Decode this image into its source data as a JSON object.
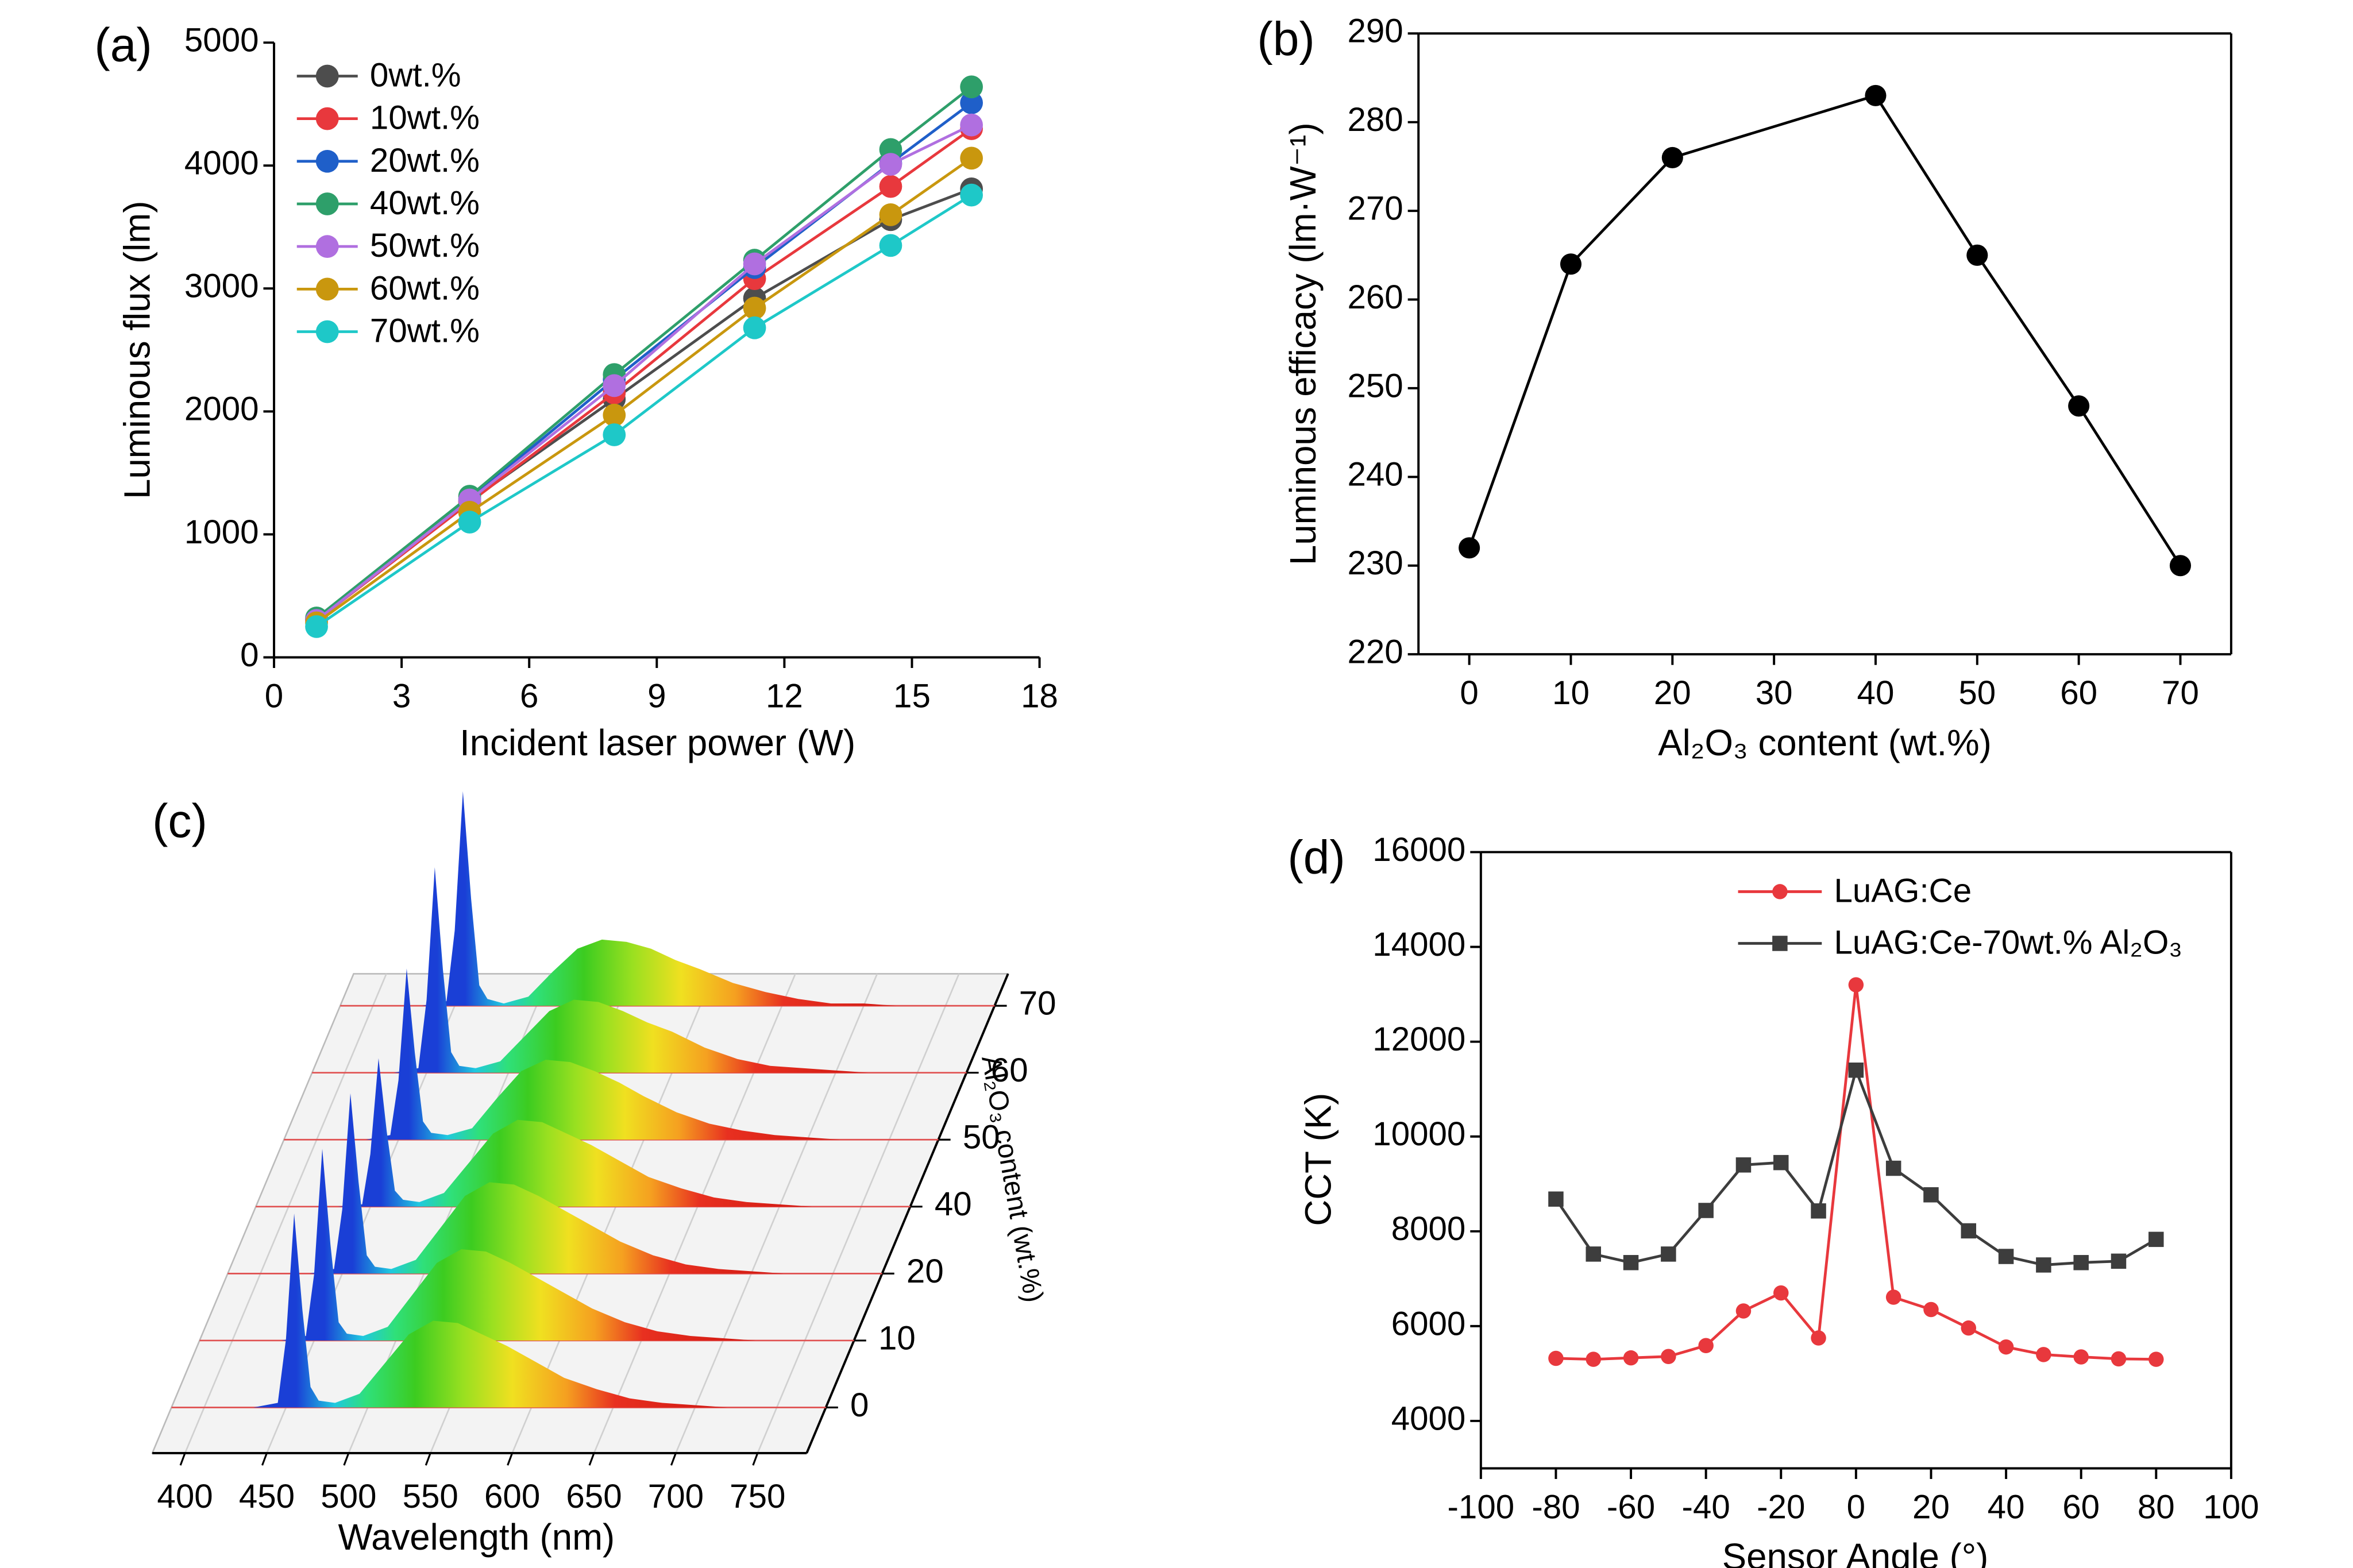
{
  "chart_data": [
    {
      "type": "line",
      "label": "(a)",
      "xlabel": "Incident laser power (W)",
      "ylabel": "Luminous flux (lm)",
      "x": [
        1,
        4.6,
        8,
        11.3,
        14.5,
        16.4
      ],
      "series": [
        {
          "name": "0wt.%",
          "color": "#4d4d4d",
          "values": [
            310,
            1270,
            2100,
            2920,
            3560,
            3810
          ]
        },
        {
          "name": "10wt.%",
          "color": "#e8383d",
          "values": [
            300,
            1260,
            2150,
            3080,
            3830,
            4300
          ]
        },
        {
          "name": "20wt.%",
          "color": "#1f5fc9",
          "values": [
            310,
            1290,
            2260,
            3170,
            4020,
            4510
          ]
        },
        {
          "name": "40wt.%",
          "color": "#2e9f6a",
          "values": [
            320,
            1310,
            2300,
            3230,
            4130,
            4640
          ]
        },
        {
          "name": "50wt.%",
          "color": "#b06fe0",
          "values": [
            300,
            1280,
            2210,
            3200,
            4010,
            4330
          ]
        },
        {
          "name": "60wt.%",
          "color": "#c9970e",
          "values": [
            280,
            1180,
            1970,
            2840,
            3600,
            4060
          ]
        },
        {
          "name": "70wt.%",
          "color": "#1ec8c8",
          "values": [
            250,
            1100,
            1810,
            2680,
            3350,
            3760
          ]
        }
      ],
      "xlim": [
        0,
        18
      ],
      "xticks": [
        0,
        3,
        6,
        9,
        12,
        15,
        18
      ],
      "ylim": [
        0,
        5000
      ],
      "yticks": [
        0,
        1000,
        2000,
        3000,
        4000,
        5000
      ]
    },
    {
      "type": "line",
      "label": "(b)",
      "xlabel": "Al₂O₃ content (wt.%)",
      "ylabel": "Luminous efficacy (lm·W⁻¹)",
      "x": [
        0,
        10,
        20,
        40,
        50,
        60,
        70
      ],
      "values": [
        232,
        264,
        276,
        283,
        265,
        248,
        230
      ],
      "color": "#000000",
      "xlim": [
        -5,
        75
      ],
      "xticks": [
        0,
        10,
        20,
        30,
        40,
        50,
        60,
        70
      ],
      "ylim": [
        220,
        290
      ],
      "yticks": [
        220,
        230,
        240,
        250,
        260,
        270,
        280,
        290
      ]
    },
    {
      "type": "waterfall",
      "label": "(c)",
      "xlabel": "Wavelength (nm)",
      "ylabel": "Al₂O₃ content (wt.%)",
      "categories": [
        "0",
        "10",
        "20",
        "40",
        "50",
        "60",
        "70"
      ],
      "x": [
        430,
        445,
        450,
        455,
        460,
        465,
        470,
        480,
        495,
        510,
        525,
        540,
        555,
        570,
        585,
        600,
        620,
        640,
        660,
        680,
        700,
        720,
        740,
        760
      ],
      "series": [
        {
          "values": [
            0,
            0.02,
            0.3,
            0.85,
            0.43,
            0.09,
            0.03,
            0.02,
            0.06,
            0.19,
            0.32,
            0.38,
            0.37,
            0.32,
            0.27,
            0.21,
            0.13,
            0.08,
            0.04,
            0.02,
            0.01,
            0,
            0,
            0
          ]
        },
        {
          "values": [
            0,
            0.02,
            0.29,
            0.84,
            0.42,
            0.08,
            0.03,
            0.02,
            0.06,
            0.2,
            0.34,
            0.4,
            0.39,
            0.34,
            0.28,
            0.22,
            0.14,
            0.08,
            0.04,
            0.02,
            0.01,
            0,
            0,
            0
          ]
        },
        {
          "values": [
            0,
            0.02,
            0.28,
            0.79,
            0.4,
            0.08,
            0.03,
            0.02,
            0.06,
            0.2,
            0.34,
            0.4,
            0.39,
            0.34,
            0.28,
            0.22,
            0.14,
            0.08,
            0.04,
            0.02,
            0.01,
            0,
            0,
            0
          ]
        },
        {
          "values": [
            0,
            0.01,
            0.23,
            0.65,
            0.33,
            0.07,
            0.03,
            0.02,
            0.06,
            0.19,
            0.32,
            0.38,
            0.37,
            0.32,
            0.27,
            0.21,
            0.13,
            0.08,
            0.04,
            0.02,
            0.01,
            0,
            0,
            0
          ]
        },
        {
          "values": [
            0,
            0.02,
            0.26,
            0.75,
            0.38,
            0.08,
            0.03,
            0.02,
            0.05,
            0.18,
            0.3,
            0.35,
            0.34,
            0.3,
            0.25,
            0.19,
            0.12,
            0.07,
            0.04,
            0.02,
            0.01,
            0,
            0,
            0
          ]
        },
        {
          "values": [
            0,
            0.02,
            0.32,
            0.9,
            0.45,
            0.09,
            0.03,
            0.02,
            0.05,
            0.16,
            0.27,
            0.32,
            0.31,
            0.27,
            0.22,
            0.18,
            0.11,
            0.06,
            0.03,
            0.02,
            0.01,
            0,
            0,
            0
          ]
        },
        {
          "values": [
            0,
            0.02,
            0.33,
            0.94,
            0.47,
            0.09,
            0.03,
            0.01,
            0.04,
            0.15,
            0.25,
            0.29,
            0.28,
            0.25,
            0.2,
            0.16,
            0.1,
            0.06,
            0.03,
            0.01,
            0.01,
            0,
            0,
            0
          ]
        }
      ],
      "xlim": [
        380,
        780
      ],
      "xticks": [
        400,
        450,
        500,
        550,
        600,
        650,
        700,
        750
      ],
      "zlim": [
        0,
        1
      ]
    },
    {
      "type": "line",
      "label": "(d)",
      "xlabel": "Sensor Angle (°)",
      "ylabel": "CCT (K)",
      "x": [
        -80,
        -70,
        -60,
        -50,
        -40,
        -30,
        -20,
        -10,
        0,
        10,
        20,
        30,
        40,
        50,
        60,
        70,
        80
      ],
      "series": [
        {
          "name": "LuAG:Ce",
          "color": "#e8383d",
          "marker": "circle",
          "values": [
            5320,
            5300,
            5330,
            5360,
            5590,
            6320,
            6700,
            5750,
            13200,
            6610,
            6350,
            5960,
            5560,
            5400,
            5350,
            5310,
            5300
          ]
        },
        {
          "name": "LuAG:Ce-70wt.% Al₂O₃",
          "color": "#3d3d3d",
          "marker": "square",
          "values": [
            8680,
            7520,
            7340,
            7520,
            8440,
            9400,
            9450,
            8430,
            11400,
            9330,
            8770,
            8010,
            7470,
            7290,
            7340,
            7370,
            7830
          ]
        }
      ],
      "xlim": [
        -100,
        100
      ],
      "xticks": [
        -100,
        -80,
        -60,
        -40,
        -20,
        0,
        20,
        40,
        60,
        80,
        100
      ],
      "ylim": [
        3000,
        16000
      ],
      "yticks": [
        4000,
        6000,
        8000,
        10000,
        12000,
        14000,
        16000
      ]
    }
  ]
}
